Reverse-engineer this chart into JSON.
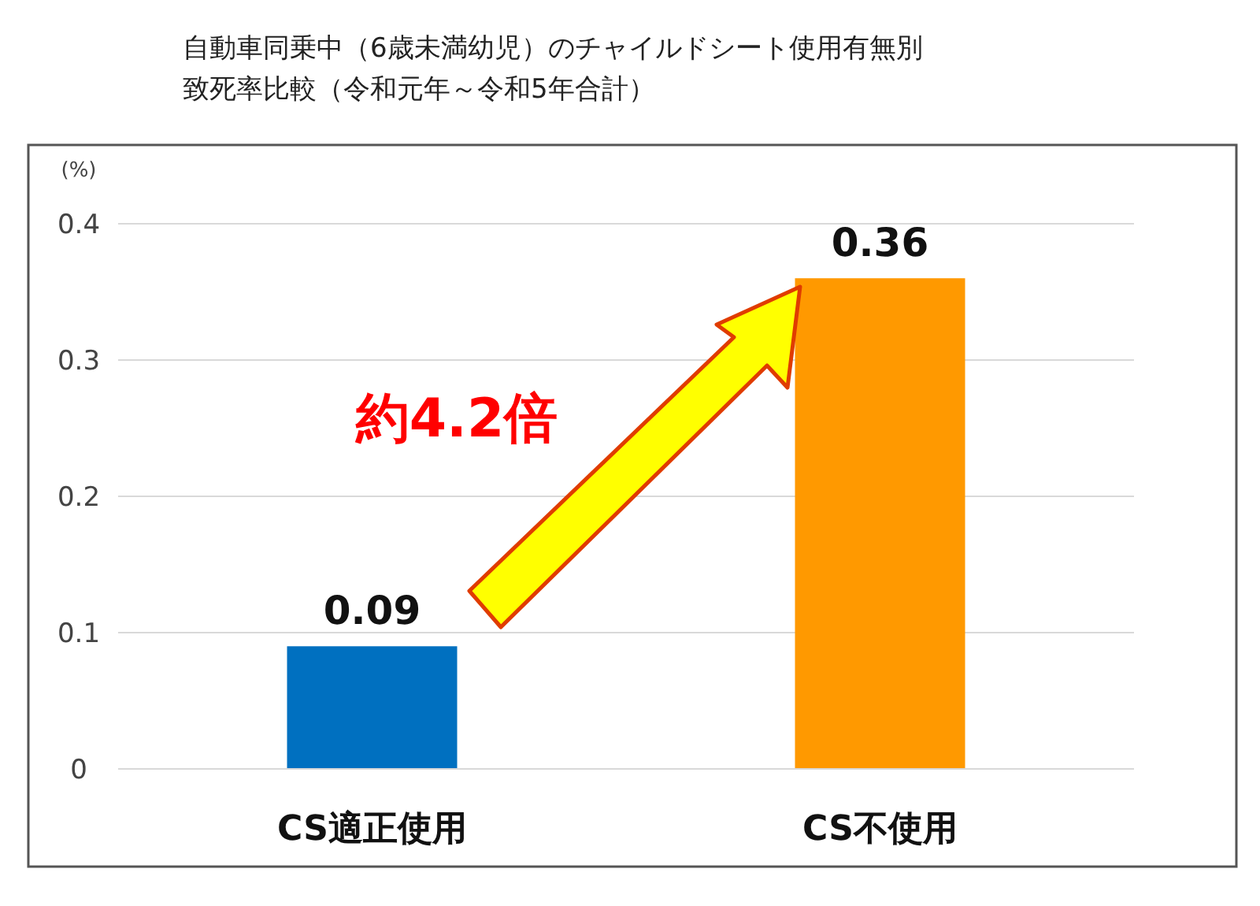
{
  "chart_data": {
    "type": "bar",
    "title": "自動車同乗中（6歳未満幼児）のチャイルドシート使用有無別",
    "subtitle": "致死率比較（令和元年～令和5年合計）",
    "ylabel": "(%)",
    "categories": [
      "CS適正使用",
      "CS不使用"
    ],
    "values": [
      0.09,
      0.36
    ],
    "colors": [
      "#0070c0",
      "#ff9900"
    ],
    "ylim": [
      0,
      0.4
    ],
    "yticks": [
      0,
      0.1,
      0.2,
      0.3,
      0.4
    ],
    "grid": "y",
    "data_labels": true,
    "annotations": [
      "約4.2倍"
    ]
  }
}
